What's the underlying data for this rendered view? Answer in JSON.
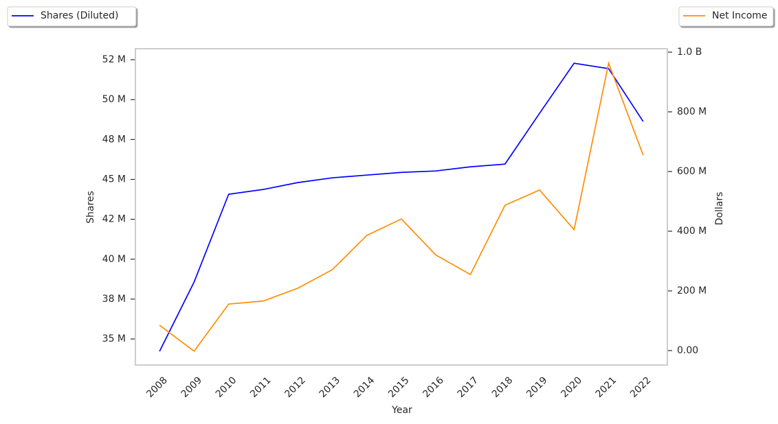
{
  "chart_data": {
    "type": "line",
    "xlabel": "Year",
    "ylabel": "Shares",
    "y2label": "Dollars",
    "categories": [
      "2008",
      "2009",
      "2010",
      "2011",
      "2012",
      "2013",
      "2014",
      "2015",
      "2016",
      "2017",
      "2018",
      "2019",
      "2020",
      "2021",
      "2022"
    ],
    "series": [
      {
        "name": "Shares (Diluted)",
        "color": "#0000ff",
        "axis": "y",
        "legend": "upper left",
        "values": [
          34230000,
          38570000,
          44070000,
          44370000,
          44800000,
          45100000,
          45270000,
          45440000,
          45530000,
          45790000,
          45960000,
          49140000,
          52280000,
          51940000,
          48630000
        ]
      },
      {
        "name": "Net Income",
        "color": "#ff8c00",
        "axis": "y2",
        "legend": "upper right",
        "values": [
          85000000,
          -2000000,
          156000000,
          166000000,
          209000000,
          271000000,
          386000000,
          441000000,
          320000000,
          255000000,
          487000000,
          538000000,
          405000000,
          963000000,
          655000000
        ]
      }
    ],
    "ylim": [
      33370000,
      53190000
    ],
    "yticks": [
      {
        "value": 35000000,
        "label": "35 M"
      },
      {
        "value": 37500000,
        "label": "38 M"
      },
      {
        "value": 40000000,
        "label": "40 M"
      },
      {
        "value": 42500000,
        "label": "42 M"
      },
      {
        "value": 45000000,
        "label": "45 M"
      },
      {
        "value": 47500000,
        "label": "48 M"
      },
      {
        "value": 50000000,
        "label": "50 M"
      },
      {
        "value": 52500000,
        "label": "52 M"
      }
    ],
    "y2lim": [
      -48300000,
      1011500000
    ],
    "y2ticks": [
      {
        "value": 0,
        "label": "0.00"
      },
      {
        "value": 200000000,
        "label": "200 M"
      },
      {
        "value": 400000000,
        "label": "400 M"
      },
      {
        "value": 600000000,
        "label": "600 M"
      },
      {
        "value": 800000000,
        "label": "800 M"
      },
      {
        "value": 1000000000,
        "label": "1.0 B"
      }
    ]
  }
}
